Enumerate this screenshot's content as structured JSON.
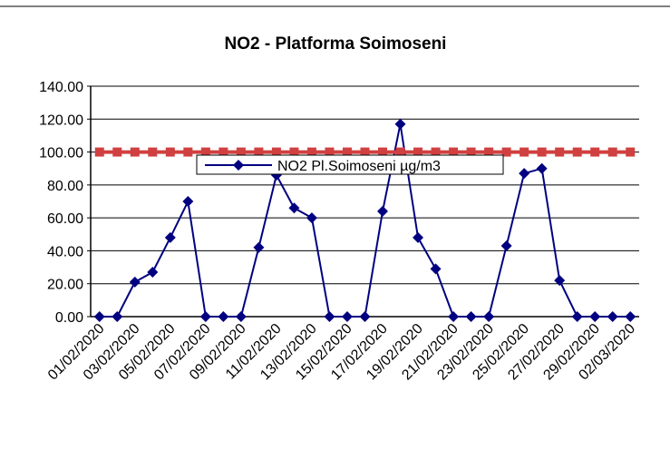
{
  "chart_data": {
    "type": "line",
    "title": "NO2 - Platforma Soimoseni",
    "categories": [
      "01/02/2020",
      null,
      "03/02/2020",
      null,
      "05/02/2020",
      null,
      "07/02/2020",
      null,
      "09/02/2020",
      null,
      "11/02/2020",
      null,
      "13/02/2020",
      null,
      "15/02/2020",
      null,
      "17/02/2020",
      null,
      "19/02/2020",
      null,
      "21/02/2020",
      null,
      "23/02/2020",
      null,
      "25/02/2020",
      null,
      "27/02/2020",
      null,
      "29/02/2020",
      null,
      "02/03/2020"
    ],
    "series": [
      {
        "name": "NO2 Pl.Soimoseni µg/m3",
        "color": "#000080",
        "values": [
          0,
          0,
          21,
          27,
          48,
          70,
          0,
          0,
          0,
          42,
          86,
          66,
          60,
          0,
          0,
          0,
          64,
          117,
          48,
          29,
          0,
          0,
          0,
          43,
          87,
          90,
          22,
          0,
          0,
          0,
          0
        ]
      },
      {
        "color": "#d04040",
        "values": [
          100,
          100,
          100,
          100,
          100,
          100,
          100,
          100,
          100,
          100,
          100,
          100,
          100,
          100,
          100,
          100,
          100,
          100,
          100,
          100,
          100,
          100,
          100,
          100,
          100,
          100,
          100,
          100,
          100,
          100,
          100
        ]
      }
    ],
    "ylim": [
      0,
      140
    ],
    "yticks": [
      {
        "value": 0,
        "label": "0.00"
      },
      {
        "value": 20,
        "label": "20.00"
      },
      {
        "value": 40,
        "label": "40.00"
      },
      {
        "value": 60,
        "label": "60.00"
      },
      {
        "value": 80,
        "label": "80.00"
      },
      {
        "value": 100,
        "label": "100.00"
      },
      {
        "value": 120,
        "label": "120.00"
      },
      {
        "value": 140,
        "label": "140.00"
      }
    ],
    "grid": true
  }
}
